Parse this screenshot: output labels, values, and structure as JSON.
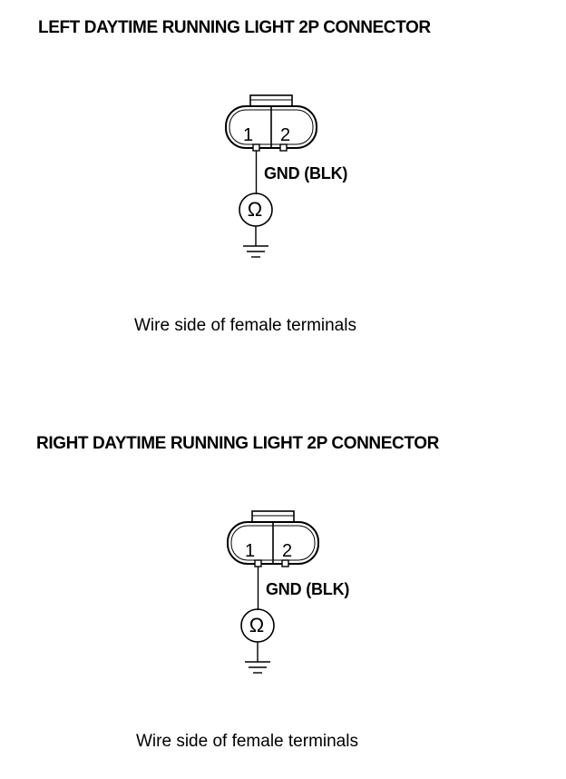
{
  "left": {
    "title": "LEFT DAYTIME RUNNING LIGHT 2P CONNECTOR",
    "pin1": "1",
    "pin2": "2",
    "wire_label": "GND (BLK)",
    "meter_symbol": "Ω",
    "caption": "Wire side of female terminals"
  },
  "right": {
    "title": "RIGHT DAYTIME RUNNING LIGHT 2P CONNECTOR",
    "pin1": "1",
    "pin2": "2",
    "wire_label": "GND (BLK)",
    "meter_symbol": "Ω",
    "caption": "Wire side of female terminals"
  },
  "icons": {
    "connector": "connector-2p-icon",
    "ohmmeter": "ohmmeter-icon",
    "ground": "ground-icon"
  },
  "colors": {
    "line": "#000000",
    "background": "#ffffff"
  }
}
